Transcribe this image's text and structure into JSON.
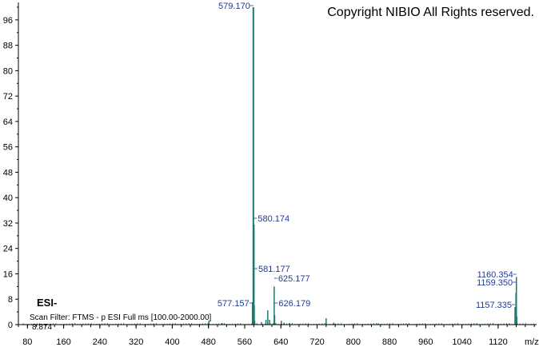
{
  "copyright": "Copyright NIBIO All Rights reserved.",
  "ionization_mode": "ESI-",
  "scan_filter": "Scan Filter: FTMS - p ESI Full ms [100.00-2000.00]",
  "min_intensity_label": "8.874",
  "colors": {
    "peak": "#1e7a6e",
    "label": "#1f3a93",
    "axis": "#000000"
  },
  "chart_data": {
    "type": "bar",
    "title": "",
    "xlabel": "m/z",
    "ylabel": "",
    "xlim": [
      60,
      1205
    ],
    "ylim": [
      0,
      100
    ],
    "xticks": [
      80,
      160,
      240,
      320,
      400,
      480,
      560,
      640,
      720,
      800,
      880,
      960,
      1040,
      1120
    ],
    "yticks": [
      0,
      8,
      16,
      24,
      32,
      40,
      48,
      56,
      64,
      72,
      80,
      88,
      96
    ],
    "peaks": [
      {
        "mz": 481.0,
        "intensity": 1.2
      },
      {
        "mz": 510.0,
        "intensity": 0.5
      },
      {
        "mz": 577.157,
        "intensity": 7.0,
        "label": "577.157"
      },
      {
        "mz": 579.17,
        "intensity": 100.0,
        "label": "579.170"
      },
      {
        "mz": 580.174,
        "intensity": 31.5,
        "label": "580.174"
      },
      {
        "mz": 581.177,
        "intensity": 6.0,
        "label": "581.177"
      },
      {
        "mz": 582.18,
        "intensity": 1.2
      },
      {
        "mz": 597.0,
        "intensity": 0.8
      },
      {
        "mz": 607.0,
        "intensity": 1.5
      },
      {
        "mz": 611.0,
        "intensity": 4.5
      },
      {
        "mz": 615.0,
        "intensity": 1.5
      },
      {
        "mz": 625.177,
        "intensity": 12.0,
        "label": "625.177"
      },
      {
        "mz": 626.179,
        "intensity": 3.0,
        "label": "626.179"
      },
      {
        "mz": 641.0,
        "intensity": 1.2
      },
      {
        "mz": 647.0,
        "intensity": 0.6
      },
      {
        "mz": 659.0,
        "intensity": 0.5
      },
      {
        "mz": 740.0,
        "intensity": 2.0
      },
      {
        "mz": 757.0,
        "intensity": 0.6
      },
      {
        "mz": 855.0,
        "intensity": 0.4
      },
      {
        "mz": 1157.335,
        "intensity": 5.5,
        "label": "1157.335"
      },
      {
        "mz": 1158.34,
        "intensity": 2.0
      },
      {
        "mz": 1159.35,
        "intensity": 10.0,
        "label": "1159.350"
      },
      {
        "mz": 1160.354,
        "intensity": 15.0,
        "label": "1160.354"
      },
      {
        "mz": 1161.36,
        "intensity": 2.5
      }
    ]
  }
}
